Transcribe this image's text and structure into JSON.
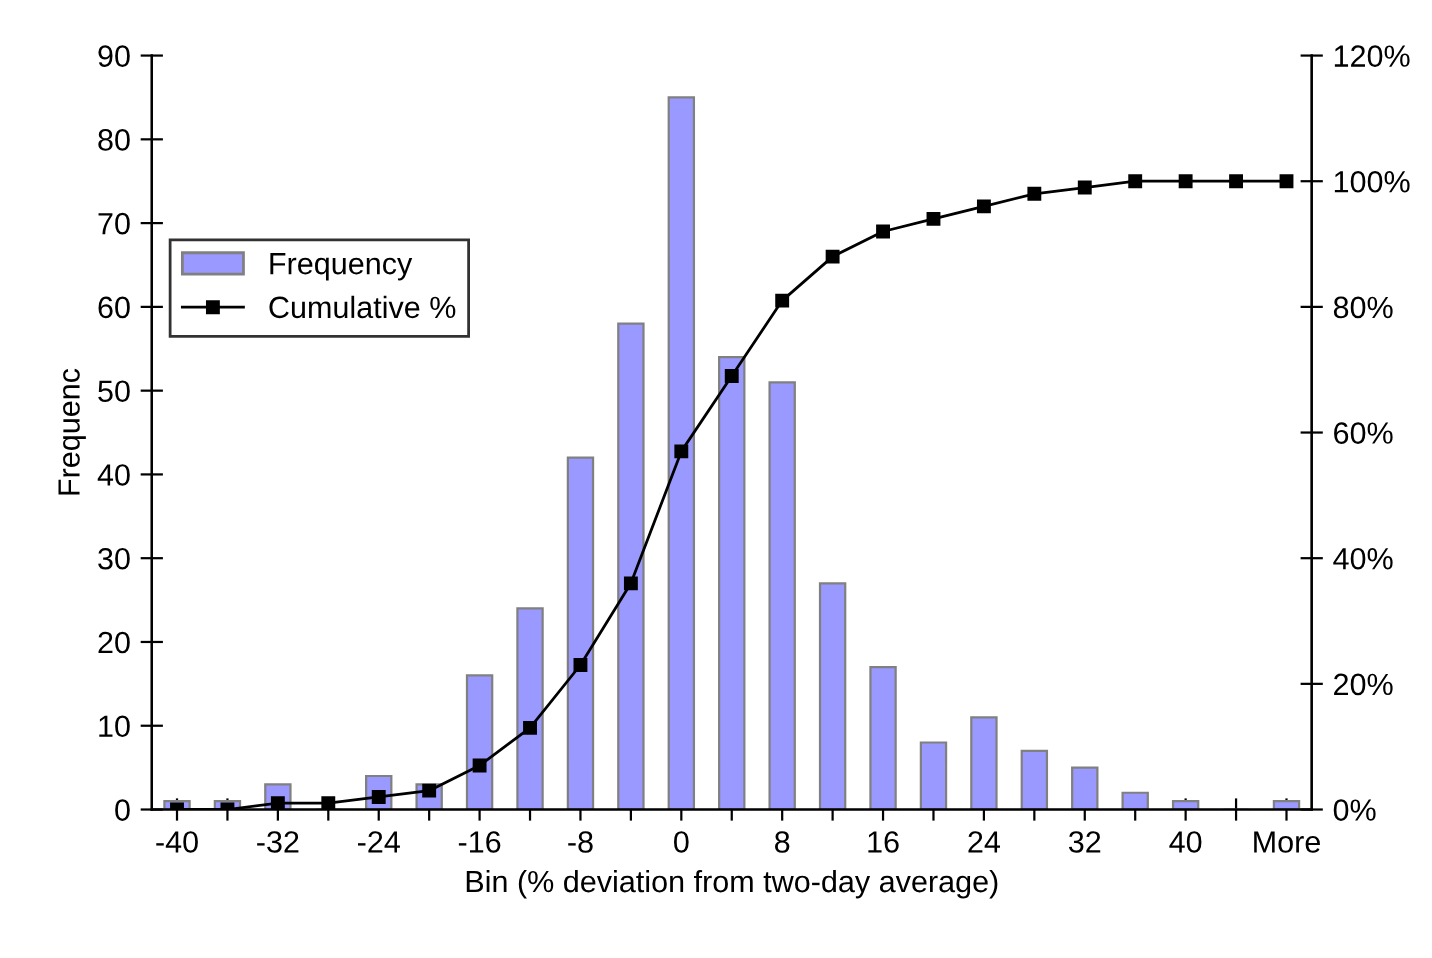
{
  "chart_data": {
    "type": "bar",
    "xlabel": "Bin (% deviation from two-day average)",
    "ylabel": "Frequenc",
    "categories": [
      "-40",
      null,
      "-32",
      null,
      "-24",
      null,
      "-16",
      null,
      "-8",
      null,
      "0",
      null,
      "8",
      null,
      "16",
      null,
      "24",
      null,
      "32",
      null,
      "40",
      null,
      "More"
    ],
    "series": [
      {
        "name": "Frequency",
        "color": "#9999ff",
        "values": [
          1,
          1,
          3,
          null,
          4,
          3,
          16,
          24,
          42,
          58,
          85,
          54,
          51,
          27,
          17,
          8,
          11,
          7,
          5,
          2,
          1,
          0,
          1
        ]
      },
      {
        "name": "Cumulative %",
        "type": "line",
        "axis": "y2",
        "color": "#000000",
        "marker": "square",
        "line_style": "solid",
        "values": [
          0,
          0,
          1,
          1,
          2,
          3,
          7,
          13,
          23,
          36,
          57,
          69,
          81,
          88,
          92,
          94,
          96,
          98,
          99,
          100,
          100,
          100,
          100
        ]
      }
    ],
    "ylim": [
      0,
      90
    ],
    "yticks": [
      0,
      10,
      20,
      30,
      40,
      50,
      60,
      70,
      80,
      90
    ],
    "y2lim": [
      0,
      120
    ],
    "y2ticks": [
      {
        "value": 0,
        "label": "0%"
      },
      {
        "value": 20,
        "label": "20%"
      },
      {
        "value": 40,
        "label": "40%"
      },
      {
        "value": 60,
        "label": "60%"
      },
      {
        "value": 80,
        "label": "80%"
      },
      {
        "value": 100,
        "label": "100%"
      },
      {
        "value": 120,
        "label": "120%"
      }
    ],
    "grid": false,
    "legend": "top left"
  }
}
